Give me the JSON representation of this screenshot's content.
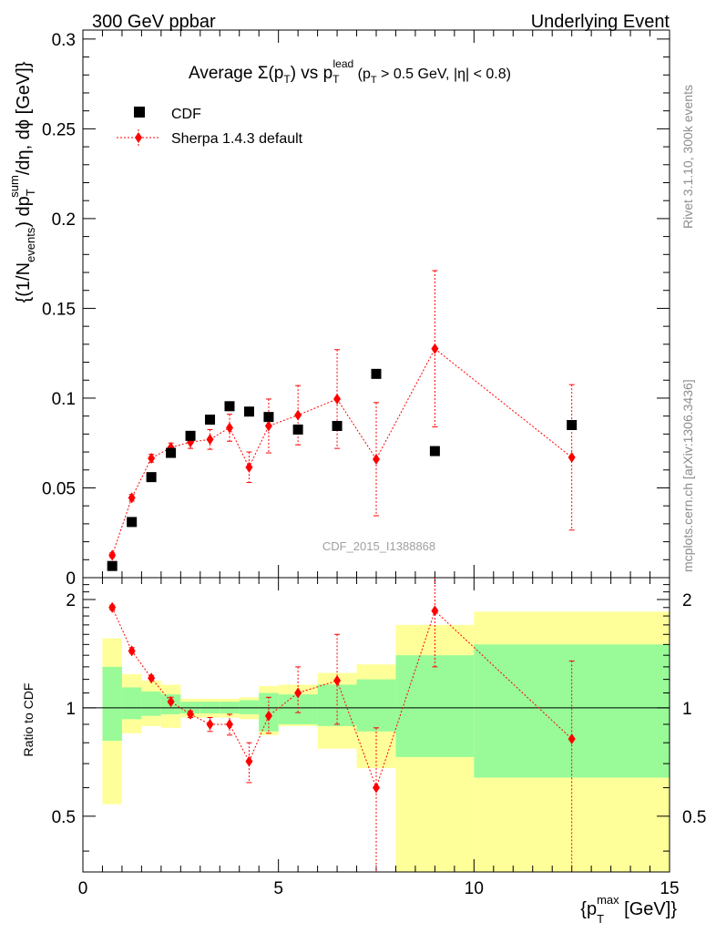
{
  "header": {
    "left": "300 GeV ppbar",
    "right": "Underlying Event"
  },
  "title": {
    "prefix": "Average ",
    "sigma": "Σ(p",
    "sub1": "T",
    "mid": ") vs p",
    "sub2": "T",
    "sup2": "lead",
    "suffix": " (p",
    "sub3": "T",
    "cut": " > 0.5 GeV, |η| < 0.8)"
  },
  "side_labels": {
    "rivet": "Rivet 3.1.10,  300k events",
    "mcplots": "mcplots.cern.ch [arXiv:1306.3436]"
  },
  "watermark": "CDF_2015_I1388868",
  "ylabel_top": {
    "a": "{(1/N",
    "a_sub": "events",
    "b": ") dp",
    "b_sub": "T",
    "b_sup": "sum",
    "c": "/dη, dϕ [GeV]}"
  },
  "ylabel_bottom": "Ratio to CDF",
  "xlabel": {
    "a": "{p",
    "sub": "T",
    "sup": "max",
    "b": " [GeV]}"
  },
  "legend": {
    "data": "CDF",
    "mc": "Sherpa 1.4.3 default"
  },
  "colors": {
    "data": "#000000",
    "mc": "#ff0000",
    "band_inner": "#98fb98",
    "band_outer": "#ffff99"
  },
  "chart_data": [
    {
      "type": "scatter",
      "panel": "main",
      "xlim": [
        0,
        15
      ],
      "ylim": [
        0,
        0.305
      ],
      "x_ticks": [
        "0",
        "5",
        "10",
        "15"
      ],
      "y_ticks": [
        "0",
        "0.05",
        "0.1",
        "0.15",
        "0.2",
        "0.25",
        "0.3"
      ],
      "series": [
        {
          "name": "CDF",
          "x": [
            0.75,
            1.25,
            1.75,
            2.25,
            2.75,
            3.25,
            3.75,
            4.25,
            4.75,
            5.5,
            6.5,
            7.5,
            9.0,
            12.5
          ],
          "y": [
            0.0065,
            0.031,
            0.056,
            0.0695,
            0.079,
            0.088,
            0.0955,
            0.0925,
            0.0895,
            0.0825,
            0.0845,
            0.1135,
            0.0705,
            0.085
          ]
        },
        {
          "name": "Sherpa 1.4.3 default",
          "x": [
            0.75,
            1.25,
            1.75,
            2.25,
            2.75,
            3.25,
            3.75,
            4.25,
            4.75,
            5.5,
            6.5,
            7.5,
            9.0,
            12.5
          ],
          "y": [
            0.0125,
            0.0445,
            0.0665,
            0.0725,
            0.0755,
            0.077,
            0.0835,
            0.0615,
            0.0845,
            0.0905,
            0.0995,
            0.066,
            0.1275,
            0.067
          ],
          "yerr": [
            0.0013,
            0.0018,
            0.0022,
            0.0025,
            0.0035,
            0.0055,
            0.0075,
            0.0085,
            0.015,
            0.0165,
            0.0275,
            0.0315,
            0.0435,
            0.0405
          ]
        }
      ]
    },
    {
      "type": "scatter",
      "panel": "ratio",
      "xlim": [
        0,
        15
      ],
      "ylim": [
        0.35,
        2.3
      ],
      "y_ticks": [
        "0.5",
        "1",
        "2"
      ],
      "reference_line": 1,
      "bins": [
        {
          "x0": 0.5,
          "x1": 1.0,
          "inner": [
            0.81,
            1.3
          ],
          "outer": [
            0.54,
            1.56
          ]
        },
        {
          "x0": 1.0,
          "x1": 1.5,
          "inner": [
            0.93,
            1.14
          ],
          "outer": [
            0.85,
            1.24
          ]
        },
        {
          "x0": 1.5,
          "x1": 2.0,
          "inner": [
            0.95,
            1.11
          ],
          "outer": [
            0.89,
            1.19
          ]
        },
        {
          "x0": 2.0,
          "x1": 2.5,
          "inner": [
            0.96,
            1.09
          ],
          "outer": [
            0.88,
            1.16
          ]
        },
        {
          "x0": 2.5,
          "x1": 3.0,
          "inner": [
            0.965,
            1.04
          ],
          "outer": [
            0.94,
            1.06
          ]
        },
        {
          "x0": 3.0,
          "x1": 3.5,
          "inner": [
            0.965,
            1.04
          ],
          "outer": [
            0.94,
            1.06
          ]
        },
        {
          "x0": 3.5,
          "x1": 4.0,
          "inner": [
            0.965,
            1.04
          ],
          "outer": [
            0.94,
            1.06
          ]
        },
        {
          "x0": 4.0,
          "x1": 4.5,
          "inner": [
            0.96,
            1.05
          ],
          "outer": [
            0.93,
            1.07
          ]
        },
        {
          "x0": 4.5,
          "x1": 5.0,
          "inner": [
            0.86,
            1.1
          ],
          "outer": [
            0.84,
            1.15
          ]
        },
        {
          "x0": 5.0,
          "x1": 6.0,
          "inner": [
            0.9,
            1.09
          ],
          "outer": [
            0.89,
            1.16
          ]
        },
        {
          "x0": 6.0,
          "x1": 7.0,
          "inner": [
            0.89,
            1.16
          ],
          "outer": [
            0.77,
            1.25
          ]
        },
        {
          "x0": 7.0,
          "x1": 8.0,
          "inner": [
            0.86,
            1.2
          ],
          "outer": [
            0.68,
            1.32
          ]
        },
        {
          "x0": 8.0,
          "x1": 10.0,
          "inner": [
            0.73,
            1.4
          ],
          "outer": [
            0.35,
            1.7
          ]
        },
        {
          "x0": 10.0,
          "x1": 15.0,
          "inner": [
            0.64,
            1.5
          ],
          "outer": [
            0.35,
            1.85
          ]
        }
      ],
      "series": [
        {
          "name": "Sherpa 1.4.3 default",
          "x": [
            0.75,
            1.25,
            1.75,
            2.25,
            2.75,
            3.25,
            3.75,
            4.25,
            4.75,
            5.5,
            6.5,
            7.5,
            9.0,
            12.5
          ],
          "y": [
            1.9,
            1.44,
            1.21,
            1.04,
            0.96,
            0.9,
            0.9,
            0.71,
            0.95,
            1.1,
            1.19,
            0.6,
            1.86,
            0.82
          ],
          "ylo": [
            1.87,
            1.42,
            1.2,
            1.03,
            0.94,
            0.86,
            0.84,
            0.62,
            0.85,
            0.97,
            0.9,
            0.3,
            1.3,
            0.35
          ],
          "yhi": [
            1.93,
            1.47,
            1.23,
            1.07,
            0.98,
            0.94,
            0.96,
            0.8,
            1.07,
            1.3,
            1.6,
            0.88,
            2.35,
            1.35
          ]
        }
      ]
    }
  ]
}
